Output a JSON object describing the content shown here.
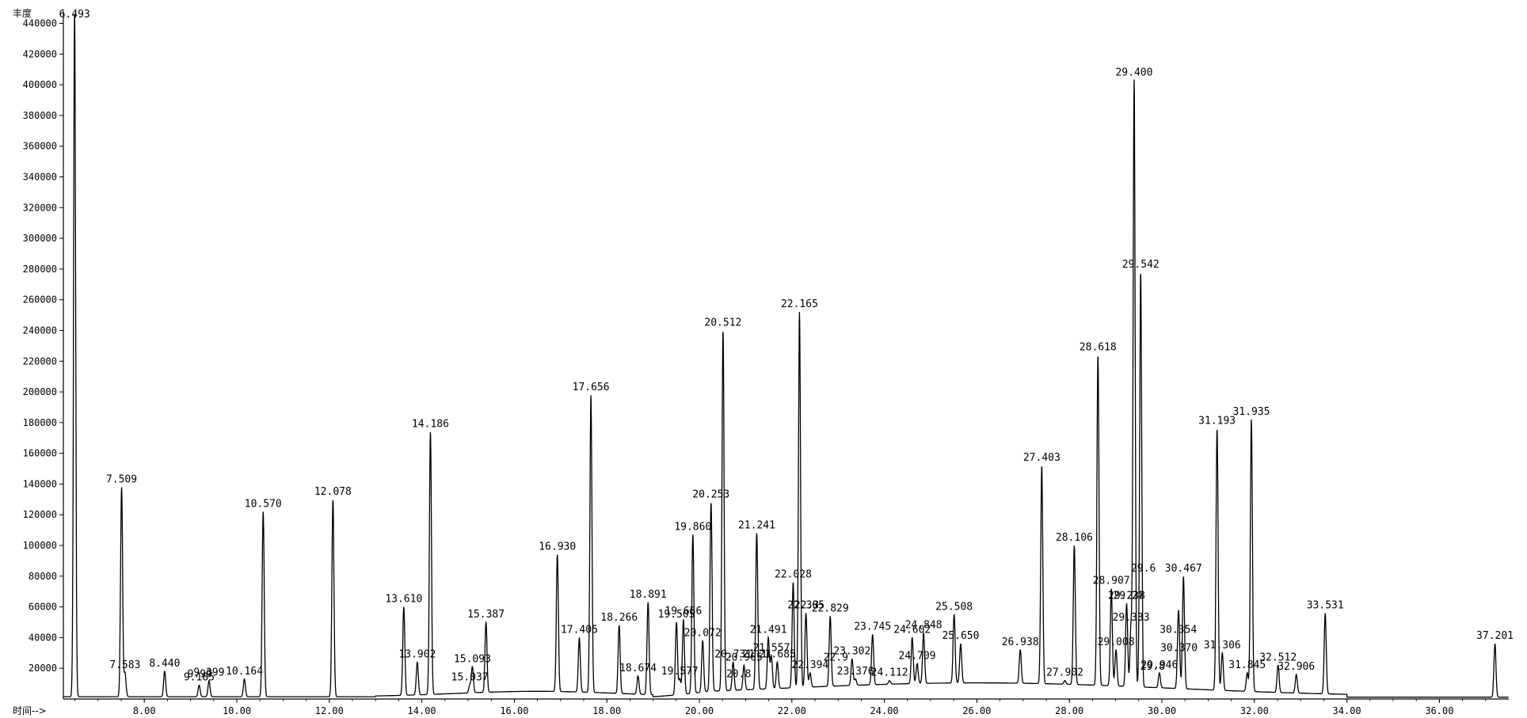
{
  "chart_data": {
    "type": "line",
    "ylabel": "丰度",
    "xlabel": "时间-->",
    "xlim": [
      6.25,
      37.5
    ],
    "ylim": [
      0,
      448000
    ],
    "x_ticks": [
      "8.00",
      "10.00",
      "12.00",
      "14.00",
      "16.00",
      "18.00",
      "20.00",
      "22.00",
      "24.00",
      "26.00",
      "28.00",
      "30.00",
      "32.00",
      "34.00",
      "36.00"
    ],
    "y_ticks": [
      "20000",
      "40000",
      "60000",
      "80000",
      "100000",
      "120000",
      "140000",
      "160000",
      "180000",
      "200000",
      "220000",
      "240000",
      "260000",
      "280000",
      "300000",
      "320000",
      "340000",
      "360000",
      "380000",
      "400000",
      "420000",
      "440000"
    ],
    "grid": false,
    "peaks": [
      {
        "x": 6.493,
        "y": 448000,
        "label": "6.493"
      },
      {
        "x": 7.509,
        "y": 138000,
        "label": "7.509"
      },
      {
        "x": 7.583,
        "y": 17000,
        "label": "7.583"
      },
      {
        "x": 8.44,
        "y": 18000,
        "label": "8.440"
      },
      {
        "x": 9.185,
        "y": 9000,
        "label": "9.185"
      },
      {
        "x": 9.399,
        "y": 12000,
        "label": "9.399"
      },
      {
        "x": 10.164,
        "y": 13000,
        "label": "10.164"
      },
      {
        "x": 10.57,
        "y": 122000,
        "label": "10.570"
      },
      {
        "x": 12.078,
        "y": 130000,
        "label": "12.078"
      },
      {
        "x": 13.61,
        "y": 60000,
        "label": "13.610"
      },
      {
        "x": 13.902,
        "y": 24000,
        "label": "13.902"
      },
      {
        "x": 14.186,
        "y": 174000,
        "label": "14.186"
      },
      {
        "x": 15.037,
        "y": 9000,
        "label": "15.037"
      },
      {
        "x": 15.093,
        "y": 21000,
        "label": "15.093"
      },
      {
        "x": 15.387,
        "y": 50000,
        "label": "15.387"
      },
      {
        "x": 16.93,
        "y": 94000,
        "label": "16.930"
      },
      {
        "x": 17.405,
        "y": 40000,
        "label": "17.405"
      },
      {
        "x": 17.656,
        "y": 198000,
        "label": "17.656"
      },
      {
        "x": 18.266,
        "y": 48000,
        "label": "18.266"
      },
      {
        "x": 18.674,
        "y": 15000,
        "label": "18.674"
      },
      {
        "x": 18.891,
        "y": 63000,
        "label": "18.891"
      },
      {
        "x": 19.505,
        "y": 50000,
        "label": "19.505"
      },
      {
        "x": 19.577,
        "y": 13000,
        "label": "19.577"
      },
      {
        "x": 19.656,
        "y": 52000,
        "label": "19.656"
      },
      {
        "x": 19.86,
        "y": 107000,
        "label": "19.860"
      },
      {
        "x": 20.072,
        "y": 38000,
        "label": "20.072"
      },
      {
        "x": 20.253,
        "y": 128000,
        "label": "20.253"
      },
      {
        "x": 20.512,
        "y": 240000,
        "label": "20.512"
      },
      {
        "x": 20.731,
        "y": 24000,
        "label": "20.731"
      },
      {
        "x": 20.965,
        "y": 22000,
        "label": "20.965"
      },
      {
        "x": 21.241,
        "y": 108000,
        "label": "21.241"
      },
      {
        "x": 21.491,
        "y": 40000,
        "label": "21.491"
      },
      {
        "x": 21.557,
        "y": 28000,
        "label": "21.557"
      },
      {
        "x": 21.685,
        "y": 24000,
        "label": "21.685"
      },
      {
        "x": 22.028,
        "y": 76000,
        "label": "22.028"
      },
      {
        "x": 22.165,
        "y": 252000,
        "label": "22.165"
      },
      {
        "x": 22.305,
        "y": 56000,
        "label": "22.305"
      },
      {
        "x": 22.394,
        "y": 17000,
        "label": "22.394"
      },
      {
        "x": 22.829,
        "y": 54000,
        "label": "22.829"
      },
      {
        "x": 23.302,
        "y": 26000,
        "label": "23.302"
      },
      {
        "x": 23.376,
        "y": 13000,
        "label": "23.376"
      },
      {
        "x": 23.745,
        "y": 42000,
        "label": "23.745"
      },
      {
        "x": 24.112,
        "y": 12000,
        "label": "24.112"
      },
      {
        "x": 24.602,
        "y": 40000,
        "label": "24.602"
      },
      {
        "x": 24.709,
        "y": 23000,
        "label": "24.709"
      },
      {
        "x": 24.848,
        "y": 43000,
        "label": "24.848"
      },
      {
        "x": 25.508,
        "y": 55000,
        "label": "25.508"
      },
      {
        "x": 25.65,
        "y": 36000,
        "label": "25.650"
      },
      {
        "x": 26.938,
        "y": 32000,
        "label": "26.938"
      },
      {
        "x": 27.403,
        "y": 152000,
        "label": "27.403"
      },
      {
        "x": 27.902,
        "y": 12000,
        "label": "27.902"
      },
      {
        "x": 28.106,
        "y": 100000,
        "label": "28.106"
      },
      {
        "x": 28.618,
        "y": 224000,
        "label": "28.618"
      },
      {
        "x": 28.907,
        "y": 72000,
        "label": "28.907"
      },
      {
        "x": 29.008,
        "y": 32000,
        "label": "29.008"
      },
      {
        "x": 29.238,
        "y": 62000,
        "label": "29.238"
      },
      {
        "x": 29.333,
        "y": 48000,
        "label": "29.333"
      },
      {
        "x": 29.4,
        "y": 403000,
        "label": "29.400"
      },
      {
        "x": 29.542,
        "y": 278000,
        "label": "29.542"
      },
      {
        "x": 29.946,
        "y": 17000,
        "label": "29.946"
      },
      {
        "x": 30.37,
        "y": 28000,
        "label": "30.370"
      },
      {
        "x": 30.354,
        "y": 40000,
        "label": "30.354"
      },
      {
        "x": 30.467,
        "y": 80000,
        "label": "30.467"
      },
      {
        "x": 31.193,
        "y": 176000,
        "label": "31.193"
      },
      {
        "x": 31.306,
        "y": 30000,
        "label": "31.306"
      },
      {
        "x": 31.845,
        "y": 17000,
        "label": "31.845"
      },
      {
        "x": 31.935,
        "y": 182000,
        "label": "31.935"
      },
      {
        "x": 32.512,
        "y": 22000,
        "label": "32.512"
      },
      {
        "x": 32.906,
        "y": 16000,
        "label": "32.906"
      },
      {
        "x": 33.531,
        "y": 56000,
        "label": "33.531"
      },
      {
        "x": 37.201,
        "y": 36000,
        "label": "37.201"
      }
    ],
    "extra_labels": [
      {
        "x": 9.2,
        "y": 11000,
        "label": "9.99"
      },
      {
        "x": 20.85,
        "y": 11000,
        "label": "20.8"
      },
      {
        "x": 21.2,
        "y": 24000,
        "label": "21.1"
      },
      {
        "x": 22.32,
        "y": 56000,
        "label": "22.3"
      },
      {
        "x": 22.95,
        "y": 22000,
        "label": "22.9"
      },
      {
        "x": 29.28,
        "y": 62000,
        "label": "29.27"
      },
      {
        "x": 29.6,
        "y": 80000,
        "label": "29.6"
      },
      {
        "x": 29.8,
        "y": 16000,
        "label": "29.8"
      }
    ]
  }
}
